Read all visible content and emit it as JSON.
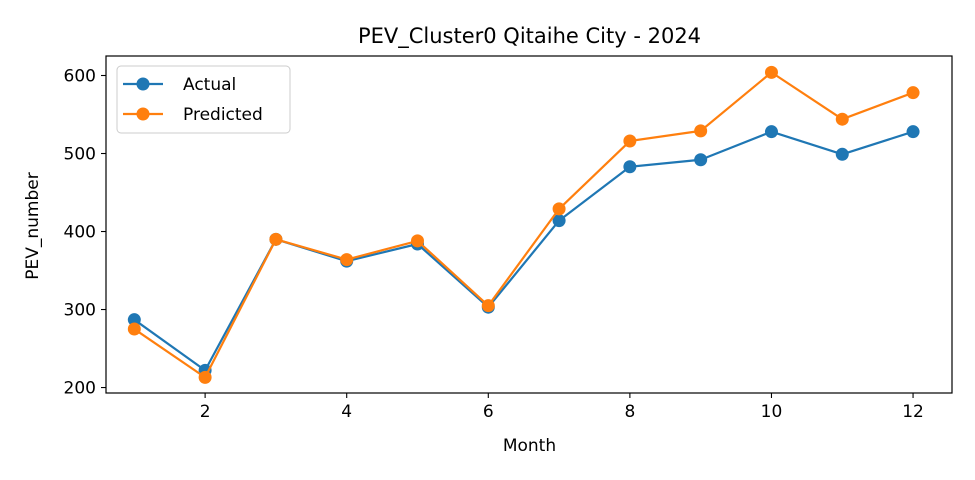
{
  "chart_data": {
    "type": "line",
    "title": "PEV_Cluster0 Qitaihe City - 2024",
    "xlabel": "Month",
    "ylabel": "PEV_number",
    "x": [
      1,
      2,
      3,
      4,
      5,
      6,
      7,
      8,
      9,
      10,
      11,
      12
    ],
    "xlim": [
      0.6,
      12.55
    ],
    "ylim": [
      193,
      625
    ],
    "xticks": [
      2,
      4,
      6,
      8,
      10,
      12
    ],
    "yticks": [
      200,
      300,
      400,
      500,
      600
    ],
    "grid": false,
    "legend_position": "top-left",
    "series": [
      {
        "name": "Actual",
        "color": "#1f77b4",
        "marker": "circle",
        "values": [
          287,
          222,
          390,
          362,
          384,
          303,
          414,
          483,
          492,
          528,
          499,
          528
        ]
      },
      {
        "name": "Predicted",
        "color": "#ff7f0e",
        "marker": "circle",
        "values": [
          275,
          213,
          390,
          364,
          388,
          305,
          429,
          516,
          529,
          604,
          544,
          578
        ]
      }
    ]
  }
}
